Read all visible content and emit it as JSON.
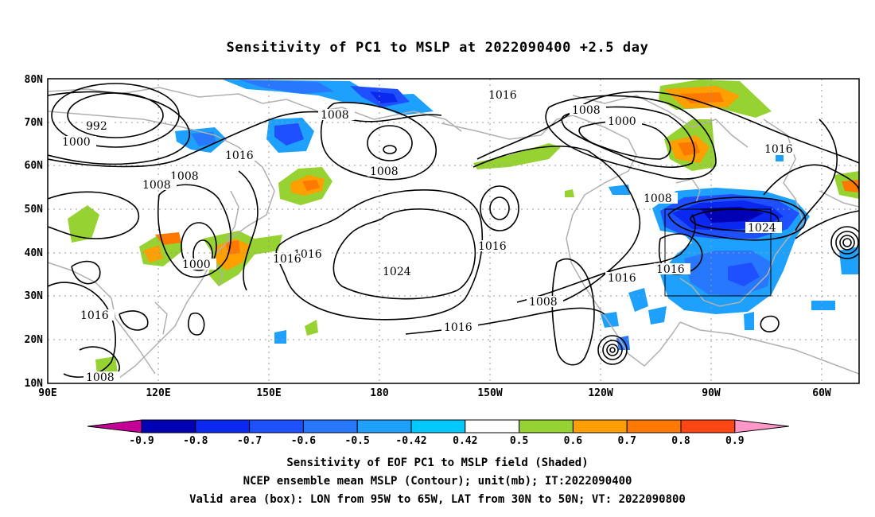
{
  "title": "Sensitivity of PC1 to MSLP at 2022090400 +2.5 day",
  "captions": [
    "Sensitivity of EOF PC1 to MSLP field (Shaded)",
    "NCEP ensemble mean MSLP (Contour); unit(mb); IT:2022090400",
    "Valid area (box): LON from 95W to 65W, LAT from 30N to 50N; VT: 2022090800"
  ],
  "map": {
    "lon_ticks": [
      "90E",
      "120E",
      "150E",
      "180",
      "150W",
      "120W",
      "90W",
      "60W"
    ],
    "lat_ticks": [
      "10N",
      "20N",
      "30N",
      "40N",
      "50N",
      "60N",
      "70N",
      "80N"
    ],
    "lon_range": [
      90,
      310
    ],
    "lat_range": [
      10,
      80
    ],
    "valid_box": {
      "lon": [
        "95W",
        "65W"
      ],
      "lat": [
        "30N",
        "50N"
      ]
    },
    "contour_labels": [
      "992",
      "1000",
      "1008",
      "1016",
      "1024"
    ]
  },
  "colorbar": {
    "labels": [
      "-0.9",
      "-0.8",
      "-0.7",
      "-0.6",
      "-0.5",
      "-0.42",
      "0.42",
      "0.5",
      "0.6",
      "0.7",
      "0.8",
      "0.9"
    ],
    "colors": [
      "#c40096",
      "#0000b4",
      "#0a28f0",
      "#1e50ff",
      "#2878ff",
      "#1ea0ff",
      "#00c8ff",
      "#ffffff",
      "#96d232",
      "#ffa000",
      "#ff7800",
      "#ff4614",
      "#ff0000",
      "#ff96c8"
    ]
  },
  "colors": {
    "coast": "#b0b0b0",
    "contour": "#000000",
    "grid": "#9a9a9a"
  }
}
